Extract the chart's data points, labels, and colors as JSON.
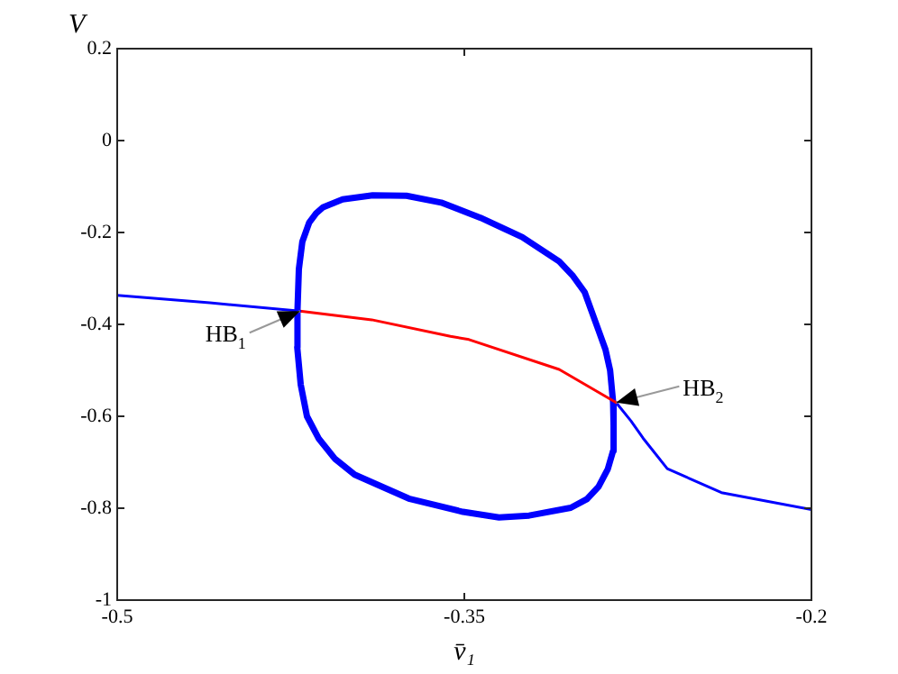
{
  "chart_data": {
    "type": "line",
    "xlabel": "v̄₁",
    "ylabel": "V",
    "xlim": [
      -0.5,
      -0.2
    ],
    "xticks": [
      -0.5,
      -0.35,
      -0.2
    ],
    "ylim": [
      -1,
      0.2
    ],
    "yticks": [
      -1,
      -0.8,
      -0.6,
      -0.4,
      -0.2,
      0,
      0.2
    ],
    "grid": false,
    "legend": false,
    "marker": "none",
    "line_style": "solid",
    "series": [
      {
        "color": "#0000ff",
        "x": [
          -0.5,
          -0.46,
          -0.421
        ],
        "values": [
          -0.337,
          -0.353,
          -0.371
        ]
      },
      {
        "color": "#ff0000",
        "x": [
          -0.421,
          -0.39,
          -0.356,
          -0.348,
          -0.309,
          -0.2844
        ],
        "values": [
          -0.371,
          -0.39,
          -0.426,
          -0.433,
          -0.498,
          -0.57
        ]
      },
      {
        "color": "#0000ff",
        "x": [
          -0.2844,
          -0.278,
          -0.2727,
          -0.2623,
          -0.2389,
          -0.2
        ],
        "values": [
          -0.57,
          -0.61,
          -0.648,
          -0.714,
          -0.766,
          -0.803
        ]
      },
      {
        "color": "#0000ff",
        "x": [
          -0.4222,
          -0.4221,
          -0.4215,
          -0.42,
          -0.417,
          -0.414,
          -0.411,
          -0.4026,
          -0.3896,
          -0.375,
          -0.36,
          -0.343,
          -0.325,
          -0.309,
          -0.303,
          -0.298,
          -0.292,
          -0.289,
          -0.287,
          -0.2857,
          -0.2855,
          -0.354,
          -0.4222,
          -0.4207,
          -0.418,
          -0.413,
          -0.406,
          -0.3974,
          -0.374,
          -0.3506,
          -0.335,
          -0.322,
          -0.304,
          -0.297,
          -0.292,
          -0.288,
          -0.2857,
          -0.2855
        ],
        "values": [
          -0.45,
          -0.37,
          -0.28,
          -0.22,
          -0.178,
          -0.158,
          -0.145,
          -0.128,
          -0.119,
          -0.12,
          -0.135,
          -0.168,
          -0.21,
          -0.263,
          -0.295,
          -0.33,
          -0.413,
          -0.455,
          -0.5,
          -0.57,
          -0.62,
          null,
          -0.45,
          -0.531,
          -0.6,
          -0.648,
          -0.692,
          -0.727,
          -0.779,
          -0.808,
          -0.82,
          -0.816,
          -0.799,
          -0.78,
          -0.753,
          -0.715,
          -0.675,
          -0.62
        ]
      }
    ],
    "annotations": [
      {
        "text": "HB$_{1}$",
        "x": -0.421,
        "y": -0.371
      },
      {
        "text": "HB$_{2}$",
        "x": -0.2844,
        "y": -0.57
      }
    ]
  }
}
